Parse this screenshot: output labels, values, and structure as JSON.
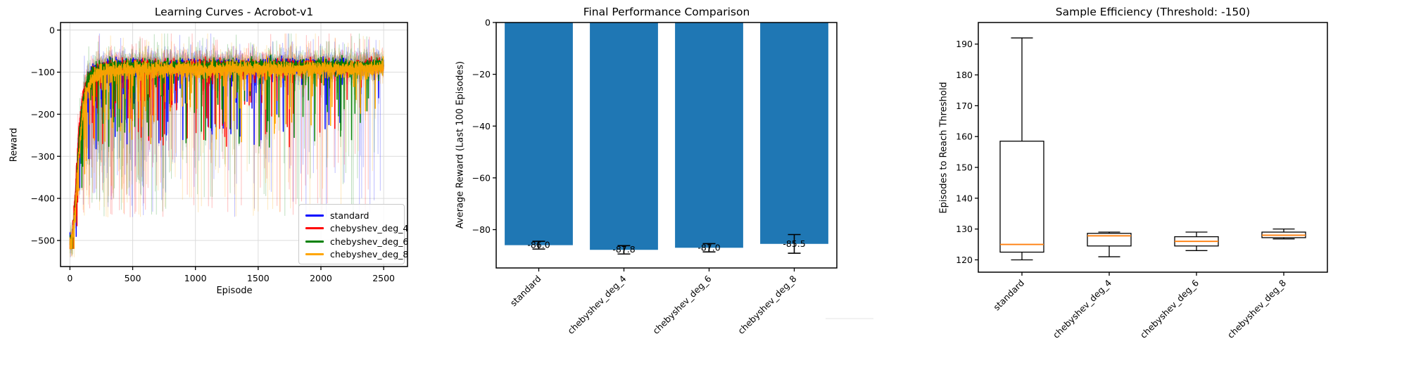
{
  "figure": {
    "background": "#ffffff"
  },
  "chart_data": [
    {
      "type": "line",
      "title": "Learning Curves - Acrobot-v1",
      "xlabel": "Episode",
      "ylabel": "Reward",
      "xlim": [
        -75,
        2690
      ],
      "ylim": [
        -562,
        18
      ],
      "xticks": [
        0,
        500,
        1000,
        1500,
        2000,
        2500
      ],
      "xtick_labels": [
        "0",
        "500",
        "1000",
        "1500",
        "2000",
        "2500"
      ],
      "yticks": [
        0,
        -100,
        -200,
        -300,
        -400,
        -500
      ],
      "ytick_labels": [
        "0",
        "−100",
        "−200",
        "−300",
        "−400",
        "−500"
      ],
      "grid": true,
      "grid_color": "#dcdcdc",
      "legend_position": "lower right",
      "episodes": 2500,
      "raw_alpha": 0.28,
      "series": [
        {
          "name": "standard",
          "color": "#0000ff",
          "seed": 7,
          "anchors": [
            [
              0,
              -500
            ],
            [
              15,
              -500
            ],
            [
              40,
              -420
            ],
            [
              70,
              -260
            ],
            [
              100,
              -170
            ],
            [
              140,
              -120
            ],
            [
              180,
              -100
            ],
            [
              250,
              -90
            ],
            [
              350,
              -85
            ],
            [
              500,
              -82
            ],
            [
              700,
              -88
            ],
            [
              900,
              -84
            ],
            [
              1100,
              -86
            ],
            [
              1300,
              -84
            ],
            [
              1500,
              -86
            ],
            [
              1700,
              -83
            ],
            [
              1900,
              -85
            ],
            [
              2100,
              -84
            ],
            [
              2300,
              -86
            ],
            [
              2499,
              -83
            ]
          ],
          "bold_sigma": 7,
          "raw_sigma": 16,
          "dip": {
            "p_early": 0.1,
            "p_final": 0.018,
            "tau": 700,
            "depth": 170
          },
          "spike": {
            "p_early": 0.12,
            "p_final": 0.01,
            "floor": [
              280,
              445
            ]
          }
        },
        {
          "name": "chebyshev_deg_4",
          "color": "#ff0000",
          "seed": 13,
          "anchors": [
            [
              0,
              -500
            ],
            [
              15,
              -495
            ],
            [
              40,
              -400
            ],
            [
              70,
              -240
            ],
            [
              100,
              -160
            ],
            [
              140,
              -115
            ],
            [
              180,
              -98
            ],
            [
              250,
              -90
            ],
            [
              350,
              -86
            ],
            [
              500,
              -84
            ],
            [
              700,
              -86
            ],
            [
              900,
              -88
            ],
            [
              1100,
              -84
            ],
            [
              1300,
              -86
            ],
            [
              1500,
              -84
            ],
            [
              1700,
              -86
            ],
            [
              1900,
              -84
            ],
            [
              2100,
              -88
            ],
            [
              2300,
              -85
            ],
            [
              2499,
              -84
            ]
          ],
          "bold_sigma": 7,
          "raw_sigma": 16,
          "dip": {
            "p_early": 0.1,
            "p_final": 0.022,
            "tau": 750,
            "depth": 170
          },
          "spike": {
            "p_early": 0.11,
            "p_final": 0.01,
            "floor": [
              280,
              445
            ]
          }
        },
        {
          "name": "chebyshev_deg_6",
          "color": "#008000",
          "seed": 21,
          "anchors": [
            [
              0,
              -500
            ],
            [
              15,
              -498
            ],
            [
              40,
              -430
            ],
            [
              70,
              -270
            ],
            [
              100,
              -175
            ],
            [
              140,
              -120
            ],
            [
              180,
              -100
            ],
            [
              250,
              -92
            ],
            [
              350,
              -86
            ],
            [
              500,
              -84
            ],
            [
              700,
              -85
            ],
            [
              900,
              -86
            ],
            [
              1100,
              -85
            ],
            [
              1300,
              -84
            ],
            [
              1500,
              -85
            ],
            [
              1700,
              -84
            ],
            [
              1900,
              -86
            ],
            [
              2100,
              -84
            ],
            [
              2300,
              -85
            ],
            [
              2499,
              -83
            ]
          ],
          "bold_sigma": 7,
          "raw_sigma": 16,
          "dip": {
            "p_early": 0.1,
            "p_final": 0.018,
            "tau": 700,
            "depth": 170
          },
          "spike": {
            "p_early": 0.12,
            "p_final": 0.01,
            "floor": [
              280,
              445
            ]
          }
        },
        {
          "name": "chebyshev_deg_8",
          "color": "#ffa500",
          "seed": 29,
          "anchors": [
            [
              0,
              -502
            ],
            [
              15,
              -500
            ],
            [
              40,
              -440
            ],
            [
              70,
              -300
            ],
            [
              100,
              -200
            ],
            [
              140,
              -140
            ],
            [
              180,
              -115
            ],
            [
              250,
              -100
            ],
            [
              350,
              -95
            ],
            [
              500,
              -92
            ],
            [
              700,
              -95
            ],
            [
              900,
              -93
            ],
            [
              1100,
              -94
            ],
            [
              1300,
              -92
            ],
            [
              1500,
              -93
            ],
            [
              1700,
              -92
            ],
            [
              1900,
              -93
            ],
            [
              2100,
              -92
            ],
            [
              2300,
              -93
            ],
            [
              2499,
              -90
            ]
          ],
          "bold_sigma": 9,
          "raw_sigma": 18,
          "dip": {
            "p_early": 0.1,
            "p_final": 0.018,
            "tau": 700,
            "depth": 150
          },
          "spike": {
            "p_early": 0.1,
            "p_final": 0.009,
            "floor": [
              280,
              445
            ]
          }
        }
      ]
    },
    {
      "type": "bar",
      "title": "Final Performance Comparison",
      "ylabel": "Average Reward (Last 100 Episodes)",
      "categories": [
        "standard",
        "chebyshev_deg_4",
        "chebyshev_deg_6",
        "chebyshev_deg_8"
      ],
      "values": [
        -86.0,
        -87.8,
        -87.0,
        -85.5
      ],
      "errors": [
        1.5,
        1.6,
        1.6,
        3.6
      ],
      "bar_labels": [
        "-86.0",
        "-87.8",
        "-87.0",
        "-85.5"
      ],
      "bar_color": "#1f77b4",
      "error_color": "#000000",
      "xlim": [
        -0.5,
        3.5
      ],
      "ylim": [
        -94.8,
        0
      ],
      "yticks": [
        0,
        -20,
        -40,
        -60,
        -80
      ],
      "ytick_labels": [
        "0",
        "−20",
        "−40",
        "−60",
        "−80"
      ],
      "bar_width": 0.8,
      "grid": false
    },
    {
      "type": "box",
      "title": "Sample Efficiency (Threshold: -150)",
      "ylabel": "Episodes to Reach Threshold",
      "categories": [
        "standard",
        "chebyshev_deg_4",
        "chebyshev_deg_6",
        "chebyshev_deg_8"
      ],
      "boxes": [
        {
          "whisker_low": 120,
          "q1": 122.5,
          "median": 125,
          "q3": 158.5,
          "whisker_high": 192
        },
        {
          "whisker_low": 121,
          "q1": 124.5,
          "median": 127.8,
          "q3": 128.6,
          "whisker_high": 129
        },
        {
          "whisker_low": 123,
          "q1": 124.5,
          "median": 126,
          "q3": 127.5,
          "whisker_high": 129
        },
        {
          "whisker_low": 126.8,
          "q1": 127.2,
          "median": 128,
          "q3": 129,
          "whisker_high": 130
        }
      ],
      "median_color": "#ff7f0e",
      "box_color": "#000000",
      "xlim": [
        0.5,
        4.5
      ],
      "ylim": [
        116,
        197
      ],
      "yticks": [
        120,
        130,
        140,
        150,
        160,
        170,
        180,
        190
      ],
      "ytick_labels": [
        "120",
        "130",
        "140",
        "150",
        "160",
        "170",
        "180",
        "190"
      ],
      "box_width": 0.5,
      "grid": false
    }
  ]
}
